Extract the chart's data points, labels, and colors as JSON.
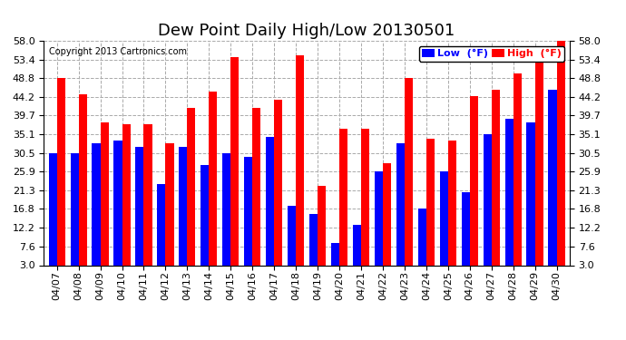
{
  "title": "Dew Point Daily High/Low 20130501",
  "copyright": "Copyright 2013 Cartronics.com",
  "yticks": [
    3.0,
    7.6,
    12.2,
    16.8,
    21.3,
    25.9,
    30.5,
    35.1,
    39.7,
    44.2,
    48.8,
    53.4,
    58.0
  ],
  "ylim": [
    3.0,
    58.0
  ],
  "dates": [
    "04/07",
    "04/08",
    "04/09",
    "04/10",
    "04/11",
    "04/12",
    "04/13",
    "04/14",
    "04/15",
    "04/16",
    "04/17",
    "04/18",
    "04/19",
    "04/20",
    "04/21",
    "04/22",
    "04/23",
    "04/24",
    "04/25",
    "04/26",
    "04/27",
    "04/28",
    "04/29",
    "04/30"
  ],
  "low_values": [
    30.5,
    30.5,
    33.0,
    33.5,
    32.0,
    23.0,
    32.0,
    27.5,
    30.5,
    29.5,
    34.5,
    17.5,
    15.5,
    8.5,
    13.0,
    25.9,
    33.0,
    17.0,
    25.9,
    21.0,
    35.1,
    39.0,
    38.0,
    46.0
  ],
  "high_values": [
    49.0,
    45.0,
    38.0,
    37.5,
    37.5,
    33.0,
    41.5,
    45.5,
    54.0,
    41.5,
    43.5,
    54.5,
    22.5,
    36.5,
    36.5,
    28.0,
    49.0,
    34.0,
    33.5,
    44.5,
    46.0,
    50.0,
    54.0,
    58.0
  ],
  "low_color": "#0000ff",
  "high_color": "#ff0000",
  "background_color": "#ffffff",
  "grid_color": "#aaaaaa",
  "bar_width": 0.38,
  "title_fontsize": 13,
  "tick_fontsize": 8,
  "copyright_fontsize": 7,
  "legend_fontsize": 8,
  "legend_low_label": "Low  (°F)",
  "legend_high_label": "High  (°F)"
}
